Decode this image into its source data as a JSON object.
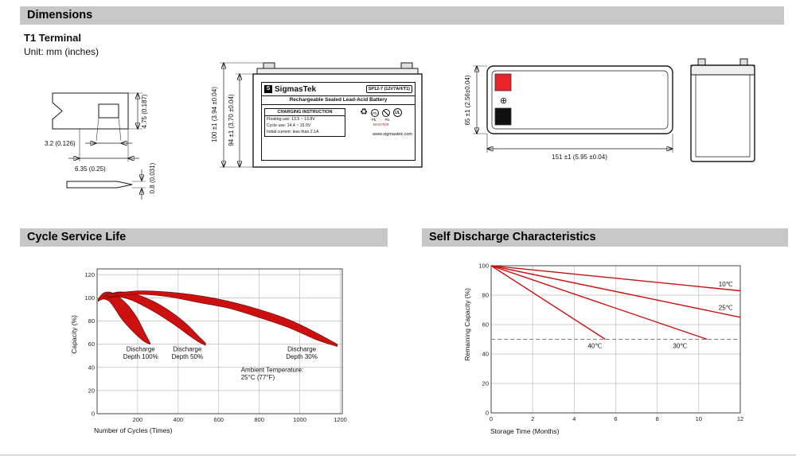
{
  "page": {
    "section_dimensions": "Dimensions",
    "terminal_type": "T1 Terminal",
    "unit_note": "Unit: mm (inches)",
    "section_cycle": "Cycle Service Life",
    "section_self_discharge": "Self Discharge Characteristics"
  },
  "terminal_drawing": {
    "dim_hole_width": "3.2 (0.126)",
    "dim_blade_width": "6.35 (0.25)",
    "dim_blade_height": "4.75 (0.187)",
    "dim_thickness": "0.8 (0.031)"
  },
  "battery_label": {
    "logo_letter": "S",
    "brand": "SigmasTek",
    "model": "SP12-7 (12V7AH/T1)",
    "product_type": "Rechargeable Sealed Lead-Acid Battery",
    "charging_title": "CHARGING INSTRUCTION",
    "charging_line1": "Floating use: 13.5 ~ 13.8V",
    "charging_line2": "Cycle use: 14.4 ~ 15.0V",
    "charging_line3": "Initial current: less than 2.1A",
    "recycle_symbol": "♻",
    "pb_label": "Pb",
    "pb_caption": "Pb.",
    "ul_label": "UL",
    "ul_code": "MH47829",
    "website": "www.sigmastek.com"
  },
  "front_view": {
    "dim_total_height": "100 ±1 (3.94 ±0.04)",
    "dim_case_height": "94 ±1 (3.70 ±0.04)"
  },
  "top_view": {
    "plus_symbol": "⊕",
    "dim_width": "65 ±1 (2.56±0.04)",
    "dim_length": "151 ±1 (5.95 ±0.04)"
  },
  "chart_data": [
    {
      "id": "cycle-service-life",
      "type": "area",
      "title": "Cycle Service Life",
      "xlabel": "Number of Cycles (Times)",
      "ylabel": "Capacity (%)",
      "xlim": [
        0,
        1210
      ],
      "ylim": [
        0,
        125
      ],
      "xticks": [
        200,
        400,
        600,
        800,
        1000,
        1200
      ],
      "yticks": [
        0,
        20,
        40,
        60,
        80,
        100,
        120
      ],
      "grid": true,
      "legend": "none",
      "series_color": "#cc0f0f",
      "bands": [
        {
          "name": "discharge-depth-100",
          "x": [
            5,
            30,
            60,
            90,
            120,
            160,
            200,
            235,
            262
          ],
          "upper": [
            99,
            104,
            105,
            103,
            99,
            92,
            82,
            70,
            61
          ],
          "lower": [
            97,
            99,
            97,
            90,
            82,
            74,
            67,
            62,
            60
          ]
        },
        {
          "name": "discharge-depth-50",
          "x": [
            30,
            100,
            170,
            240,
            310,
            380,
            450,
            500,
            535
          ],
          "upper": [
            101,
            105,
            104,
            100,
            94,
            86,
            76,
            67,
            61
          ],
          "lower": [
            99,
            101,
            98,
            92,
            85,
            77,
            68,
            62,
            59
          ]
        },
        {
          "name": "discharge-depth-30",
          "x": [
            50,
            200,
            350,
            500,
            650,
            800,
            950,
            1080,
            1185
          ],
          "upper": [
            103,
            106,
            105,
            102,
            97,
            90,
            81,
            70,
            60
          ],
          "lower": [
            101,
            103,
            101,
            96,
            91,
            83,
            74,
            64,
            58
          ]
        }
      ],
      "annotations": [
        {
          "x": 215,
          "y": 54,
          "anchor": "middle",
          "lines": [
            "Discharge",
            "Depth 100%"
          ]
        },
        {
          "x": 445,
          "y": 54,
          "anchor": "middle",
          "lines": [
            "Discharge",
            "Depth 50%"
          ]
        },
        {
          "x": 1010,
          "y": 54,
          "anchor": "middle",
          "lines": [
            "Discharge",
            "Depth 30%"
          ]
        },
        {
          "x": 710,
          "y": 36,
          "anchor": "start",
          "lines": [
            "Ambient Temperature:",
            "25°C (77°F)"
          ]
        }
      ]
    },
    {
      "id": "self-discharge",
      "type": "line",
      "title": "Self Discharge Characteristics",
      "xlabel": "Storage Time (Months)",
      "ylabel": "Remaining Capacity (%)",
      "xlim": [
        0,
        12
      ],
      "ylim": [
        0,
        100
      ],
      "xticks": [
        0,
        2,
        4,
        6,
        8,
        10,
        12
      ],
      "yticks": [
        0,
        20,
        40,
        60,
        80,
        100
      ],
      "grid": true,
      "legend": "inline-labels",
      "series_color": "#cc0f0f",
      "ref_lines": [
        {
          "y": 50,
          "style": "dashed"
        }
      ],
      "lines": [
        {
          "name": "10C",
          "points": [
            [
              0,
              100
            ],
            [
              12,
              83
            ]
          ]
        },
        {
          "name": "25C",
          "points": [
            [
              0,
              100
            ],
            [
              12,
              65
            ]
          ]
        },
        {
          "name": "30C",
          "points": [
            [
              0,
              100
            ],
            [
              10.4,
              50
            ]
          ]
        },
        {
          "name": "40C",
          "points": [
            [
              0,
              100
            ],
            [
              5.5,
              50
            ]
          ]
        }
      ],
      "annotations": [
        {
          "x": 11.3,
          "y": 86,
          "anchor": "middle",
          "lines": [
            "10℃"
          ]
        },
        {
          "x": 11.3,
          "y": 70,
          "anchor": "middle",
          "lines": [
            "25℃"
          ]
        },
        {
          "x": 5.0,
          "y": 44,
          "anchor": "middle",
          "lines": [
            "40℃"
          ]
        },
        {
          "x": 9.1,
          "y": 44,
          "anchor": "middle",
          "lines": [
            "30℃"
          ]
        }
      ]
    }
  ]
}
